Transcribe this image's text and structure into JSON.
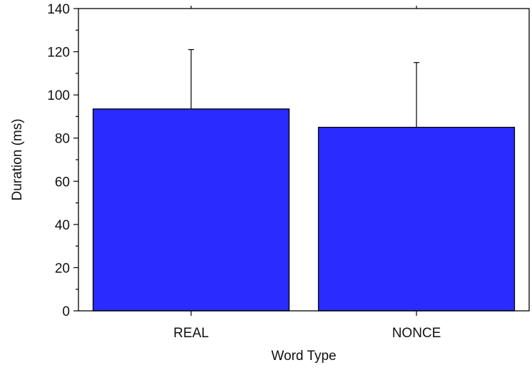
{
  "chart_data": {
    "type": "bar",
    "categories": [
      "REAL",
      "NONCE"
    ],
    "values": [
      93.5,
      85
    ],
    "error_upper": [
      121,
      115
    ],
    "xlabel": "Word Type",
    "ylabel": "Duration (ms)",
    "ylim": [
      0,
      140
    ],
    "yticks": [
      0,
      20,
      40,
      60,
      80,
      100,
      120,
      140
    ],
    "ytick_labels": [
      "0",
      "20",
      "40",
      "60",
      "80",
      "100",
      "120",
      "140"
    ],
    "grid": false,
    "legend": "none",
    "bar_color": "#2a2cff"
  }
}
